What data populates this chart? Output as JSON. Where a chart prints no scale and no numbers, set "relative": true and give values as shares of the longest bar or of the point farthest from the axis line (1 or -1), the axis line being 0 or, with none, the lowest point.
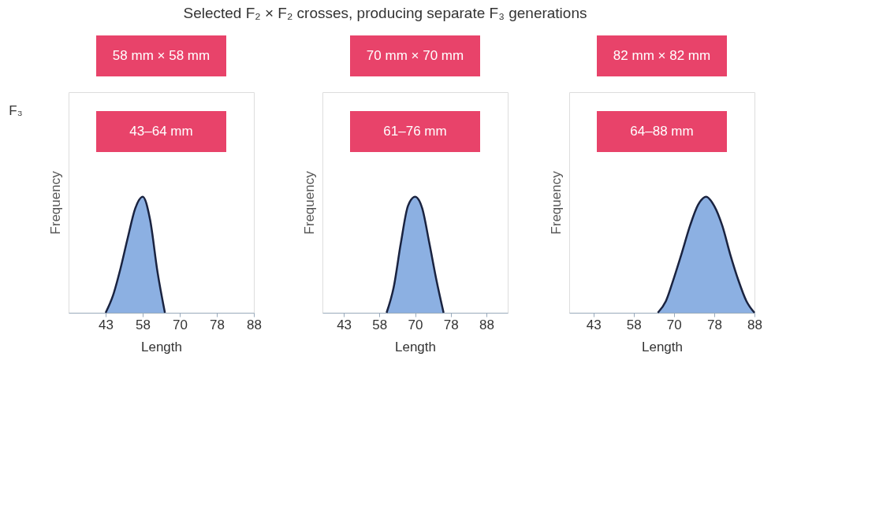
{
  "chart_data": [
    {
      "type": "area",
      "title": "Selected F₂ × F₂ crosses, producing separate F₃ generations",
      "xlabel": "Length",
      "ylabel": "Frequency",
      "relative": true,
      "grid": false,
      "annotations": [
        "F₃",
        "58 mm × 58 mm",
        "43–64 mm"
      ],
      "categories": [
        null,
        null,
        null,
        null,
        null,
        "43",
        null,
        null,
        null,
        null,
        "58",
        null,
        null,
        null,
        null,
        "70",
        null,
        null,
        null,
        null,
        "78",
        null,
        null,
        null,
        null,
        "88"
      ],
      "series": [
        {
          "color": "#5b8fd6",
          "values": [
            null,
            null,
            null,
            null,
            null,
            0,
            0.15,
            0.38,
            0.65,
            0.9,
            1.0,
            0.8,
            0.35,
            0,
            null,
            null,
            null,
            null,
            null,
            null,
            null,
            null,
            null,
            null,
            null,
            null
          ]
        }
      ]
    },
    {
      "type": "area",
      "xlabel": "Length",
      "ylabel": "Frequency",
      "relative": true,
      "grid": false,
      "annotations": [
        "70 mm × 70 mm",
        "61–76 mm"
      ],
      "categories": [
        null,
        null,
        null,
        "43",
        null,
        null,
        null,
        null,
        "58",
        null,
        null,
        null,
        null,
        "70",
        null,
        null,
        null,
        null,
        "78",
        null,
        null,
        null,
        null,
        "88",
        null,
        null,
        null
      ],
      "series": [
        {
          "color": "#5b8fd6",
          "values": [
            null,
            null,
            null,
            null,
            null,
            null,
            null,
            null,
            null,
            0,
            0.22,
            0.6,
            0.92,
            1.0,
            0.9,
            0.6,
            0.28,
            0,
            null,
            null,
            null,
            null,
            null,
            null,
            null,
            null,
            null
          ]
        }
      ]
    },
    {
      "type": "area",
      "xlabel": "Length",
      "ylabel": "Frequency",
      "relative": true,
      "grid": false,
      "annotations": [
        "82 mm × 82 mm",
        "64–88 mm"
      ],
      "categories": [
        null,
        null,
        null,
        "43",
        null,
        null,
        null,
        null,
        "58",
        null,
        null,
        null,
        null,
        "70",
        null,
        null,
        null,
        null,
        "78",
        null,
        null,
        null,
        null,
        "88"
      ],
      "series": [
        {
          "color": "#5b8fd6",
          "values": [
            null,
            null,
            null,
            null,
            null,
            null,
            null,
            null,
            null,
            null,
            null,
            0,
            0.1,
            0.3,
            0.52,
            0.75,
            0.93,
            1.0,
            0.92,
            0.75,
            0.5,
            0.28,
            0.1,
            0
          ]
        }
      ]
    }
  ]
}
